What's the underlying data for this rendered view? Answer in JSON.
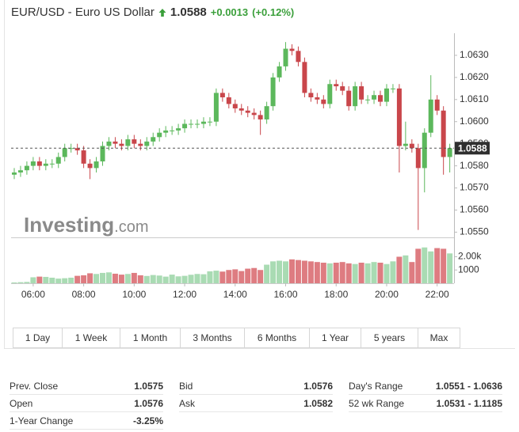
{
  "header": {
    "title": "EUR/USD - Euro US Dollar",
    "change": "+0.0013",
    "change_pct": "(+0.12%)"
  },
  "chart_data": {
    "type": "candlestick",
    "current_price": 1.0588,
    "watermark": "Investing",
    "watermark_suffix": ".com",
    "up_color": "#5cb85c",
    "down_color": "#c9464b",
    "volume_up_color": "#a9dbb3",
    "volume_down_color": "#de7c81",
    "xlim": [
      5.125,
      22.7
    ],
    "xticks": [
      {
        "value": 6,
        "label": "06:00"
      },
      {
        "value": 8,
        "label": "08:00"
      },
      {
        "value": 10,
        "label": "10:00"
      },
      {
        "value": 12,
        "label": "12:00"
      },
      {
        "value": 14,
        "label": "14:00"
      },
      {
        "value": 16,
        "label": "16:00"
      },
      {
        "value": 18,
        "label": "18:00"
      },
      {
        "value": 20,
        "label": "20:00"
      },
      {
        "value": 22,
        "label": "22:00"
      }
    ],
    "ylim": [
      1.0548,
      1.064
    ],
    "yticks": [
      {
        "value": 1.055,
        "label": "1.0550"
      },
      {
        "value": 1.056,
        "label": "1.0560"
      },
      {
        "value": 1.057,
        "label": "1.0570"
      },
      {
        "value": 1.058,
        "label": "1.0580"
      },
      {
        "value": 1.059,
        "label": "1.0590"
      },
      {
        "value": 1.06,
        "label": "1.0600"
      },
      {
        "value": 1.061,
        "label": "1.0610"
      },
      {
        "value": 1.062,
        "label": "1.0620"
      },
      {
        "value": 1.063,
        "label": "1.0630"
      }
    ],
    "y2lim": [
      0,
      3400
    ],
    "y2ticks": [
      1000,
      {
        "value": 2000,
        "label": "2.00k"
      }
    ],
    "grid": false,
    "x": [
      5.25,
      5.5,
      5.75,
      6,
      6.25,
      6.5,
      6.75,
      7,
      7.25,
      7.5,
      7.75,
      8,
      8.25,
      8.5,
      8.75,
      9,
      9.25,
      9.5,
      9.75,
      10,
      10.25,
      10.5,
      10.75,
      11,
      11.25,
      11.5,
      11.75,
      12,
      12.25,
      12.5,
      12.75,
      13,
      13.25,
      13.5,
      13.75,
      14,
      14.25,
      14.5,
      14.75,
      15,
      15.25,
      15.5,
      15.75,
      16,
      16.25,
      16.5,
      16.75,
      17,
      17.25,
      17.5,
      17.75,
      18,
      18.25,
      18.5,
      18.75,
      19,
      19.25,
      19.5,
      19.75,
      20,
      20.25,
      20.5,
      20.75,
      21,
      21.25,
      21.5,
      21.75,
      22,
      22.25,
      22.5
    ],
    "open": [
      1.0576,
      1.0577,
      1.0578,
      1.058,
      1.0582,
      1.058,
      1.0581,
      1.0581,
      1.0584,
      1.0588,
      1.0588,
      1.0587,
      1.0581,
      1.0579,
      1.0582,
      1.0589,
      1.0591,
      1.059,
      1.0589,
      1.0592,
      1.059,
      1.0589,
      1.0591,
      1.0593,
      1.0595,
      1.0596,
      1.0596,
      1.0597,
      1.0599,
      1.0599,
      1.0599,
      1.06,
      1.06,
      1.0613,
      1.0611,
      1.0608,
      1.0606,
      1.0605,
      1.0604,
      1.0603,
      1.0601,
      1.0607,
      1.062,
      1.0625,
      1.0633,
      1.0632,
      1.0627,
      1.0613,
      1.0611,
      1.061,
      1.0608,
      1.0617,
      1.0616,
      1.0614,
      1.0607,
      1.0616,
      1.061,
      1.061,
      1.0612,
      1.0609,
      1.0615,
      1.0615,
      1.0589,
      1.059,
      1.0588,
      1.0579,
      1.0595,
      1.061,
      1.0605,
      1.0584
    ],
    "high": [
      1.0579,
      1.058,
      1.0582,
      1.0584,
      1.0584,
      1.0583,
      1.0583,
      1.0586,
      1.059,
      1.059,
      1.059,
      1.0589,
      1.0583,
      1.0584,
      1.0591,
      1.0593,
      1.0593,
      1.0592,
      1.0594,
      1.0594,
      1.0592,
      1.0593,
      1.0595,
      1.0597,
      1.0598,
      1.0598,
      1.0599,
      1.0601,
      1.0601,
      1.0601,
      1.0602,
      1.0602,
      1.0615,
      1.0615,
      1.0613,
      1.061,
      1.0608,
      1.0607,
      1.0606,
      1.0605,
      1.0609,
      1.0622,
      1.0627,
      1.0636,
      1.0635,
      1.0634,
      1.0629,
      1.0615,
      1.0613,
      1.0612,
      1.0619,
      1.0619,
      1.0618,
      1.0616,
      1.0618,
      1.0618,
      1.0612,
      1.0614,
      1.0614,
      1.0617,
      1.0617,
      1.0617,
      1.06,
      1.0592,
      1.059,
      1.0597,
      1.0621,
      1.0612,
      1.0607,
      1.059
    ],
    "low": [
      1.0574,
      1.0575,
      1.0576,
      1.0578,
      1.0578,
      1.0578,
      1.0579,
      1.0579,
      1.0582,
      1.0586,
      1.0585,
      1.0579,
      1.0574,
      1.0577,
      1.058,
      1.0587,
      1.0588,
      1.0587,
      1.0587,
      1.0588,
      1.0587,
      1.0587,
      1.0589,
      1.0591,
      1.0593,
      1.0594,
      1.0594,
      1.0595,
      1.0597,
      1.0597,
      1.0597,
      1.0598,
      1.0598,
      1.0609,
      1.0606,
      1.0604,
      1.0603,
      1.0602,
      1.0601,
      1.0594,
      1.0599,
      1.0605,
      1.0618,
      1.0623,
      1.063,
      1.0625,
      1.0611,
      1.0609,
      1.0608,
      1.0606,
      1.0606,
      1.0614,
      1.0612,
      1.0605,
      1.0605,
      1.0608,
      1.0608,
      1.0608,
      1.0607,
      1.0607,
      1.0613,
      1.0577,
      1.0587,
      1.0586,
      1.0551,
      1.0568,
      1.0593,
      1.0603,
      1.0576,
      1.0577
    ],
    "close": [
      1.0577,
      1.0578,
      1.058,
      1.0582,
      1.058,
      1.0581,
      1.0581,
      1.0584,
      1.0588,
      1.0588,
      1.0587,
      1.0581,
      1.0579,
      1.0582,
      1.0589,
      1.0591,
      1.059,
      1.0589,
      1.0592,
      1.059,
      1.0589,
      1.0591,
      1.0593,
      1.0595,
      1.0596,
      1.0596,
      1.0597,
      1.0599,
      1.0599,
      1.0599,
      1.06,
      1.06,
      1.0613,
      1.0611,
      1.0608,
      1.0606,
      1.0605,
      1.0604,
      1.0603,
      1.0601,
      1.0607,
      1.062,
      1.0625,
      1.0633,
      1.0632,
      1.0627,
      1.0613,
      1.0611,
      1.061,
      1.0608,
      1.0617,
      1.0616,
      1.0614,
      1.0607,
      1.0616,
      1.061,
      1.061,
      1.0612,
      1.0609,
      1.0615,
      1.0615,
      1.0589,
      1.059,
      1.0588,
      1.0579,
      1.0595,
      1.061,
      1.0605,
      1.0584,
      1.0588
    ],
    "volume": [
      60,
      80,
      100,
      450,
      500,
      480,
      420,
      350,
      380,
      420,
      560,
      600,
      750,
      700,
      780,
      820,
      720,
      650,
      700,
      780,
      600,
      550,
      620,
      580,
      500,
      650,
      520,
      560,
      640,
      700,
      680,
      900,
      950,
      880,
      1000,
      1050,
      920,
      1100,
      1150,
      1000,
      1400,
      1650,
      1700,
      1650,
      1800,
      1750,
      1700,
      1650,
      1600,
      1550,
      1500,
      1550,
      1600,
      1500,
      1450,
      1550,
      1500,
      1600,
      1550,
      1450,
      1650,
      2000,
      2100,
      1600,
      2600,
      2700,
      2400,
      2650,
      2600,
      2250
    ]
  },
  "range_buttons": [
    "1 Day",
    "1 Week",
    "1 Month",
    "3 Months",
    "6 Months",
    "1 Year",
    "5 years",
    "Max"
  ],
  "stats": [
    [
      {
        "label": "Prev. Close",
        "value": "1.0575"
      },
      {
        "label": "Open",
        "value": "1.0576"
      },
      {
        "label": "1-Year Change",
        "value": "-3.25%"
      }
    ],
    [
      {
        "label": "Bid",
        "value": "1.0576"
      },
      {
        "label": "Ask",
        "value": "1.0582"
      }
    ],
    [
      {
        "label": "Day's Range",
        "value": "1.0551 - 1.0636"
      },
      {
        "label": "52 wk Range",
        "value": "1.0531 - 1.1185"
      }
    ]
  ]
}
